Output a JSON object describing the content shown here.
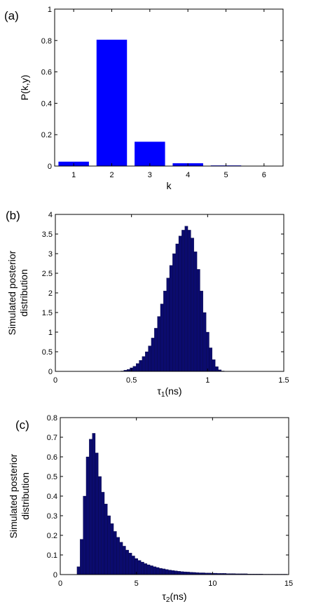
{
  "chart_data": [
    {
      "panel_label": "(a)",
      "type": "bar",
      "categories": [
        "1",
        "2",
        "3",
        "4",
        "5",
        "6"
      ],
      "values": [
        0.028,
        0.805,
        0.155,
        0.018,
        0.004,
        0.002
      ],
      "xlabel": "k",
      "ylabel": "P(k,y)",
      "ylim": [
        0,
        1
      ],
      "yticks": [
        0,
        0.2,
        0.4,
        0.6,
        0.8,
        1
      ],
      "bar_color": "#0000ff",
      "grid": false
    },
    {
      "panel_label": "(b)",
      "type": "bar",
      "xlabel_symbol": "τ",
      "xlabel_sub": "1",
      "xlabel_unit": "(ns)",
      "ylabel_lines": [
        "Simulated posterior",
        "distribution"
      ],
      "xlim": [
        0,
        1.5
      ],
      "ylim": [
        0,
        4
      ],
      "xticks": [
        0,
        0.5,
        1,
        1.5
      ],
      "yticks": [
        0,
        0.5,
        1,
        1.5,
        2,
        2.5,
        3,
        3.5,
        4
      ],
      "bar_color": "#0b0b6e",
      "grid": false,
      "x": [
        0.44,
        0.46,
        0.48,
        0.5,
        0.52,
        0.54,
        0.56,
        0.58,
        0.6,
        0.62,
        0.64,
        0.66,
        0.68,
        0.7,
        0.72,
        0.74,
        0.76,
        0.78,
        0.8,
        0.82,
        0.84,
        0.86,
        0.88,
        0.9,
        0.92,
        0.94,
        0.96,
        0.98,
        1.0,
        1.02,
        1.04,
        1.06,
        1.08,
        1.1
      ],
      "values": [
        0.01,
        0.03,
        0.05,
        0.09,
        0.13,
        0.2,
        0.28,
        0.38,
        0.5,
        0.65,
        0.85,
        1.1,
        1.4,
        1.72,
        2.05,
        2.38,
        2.7,
        3.0,
        3.25,
        3.45,
        3.6,
        3.7,
        3.6,
        3.4,
        3.05,
        2.6,
        2.05,
        1.5,
        1.0,
        0.6,
        0.3,
        0.12,
        0.04,
        0.01
      ]
    },
    {
      "panel_label": "(c)",
      "type": "bar",
      "xlabel_symbol": "τ",
      "xlabel_sub": "2",
      "xlabel_unit": "(ns)",
      "ylabel_lines": [
        "Simulated posterior",
        "distribution"
      ],
      "xlim": [
        0,
        15
      ],
      "ylim": [
        0,
        0.8
      ],
      "xticks": [
        0,
        5,
        10,
        15
      ],
      "yticks": [
        0,
        0.1,
        0.2,
        0.3,
        0.4,
        0.5,
        0.6,
        0.7,
        0.8
      ],
      "bar_color": "#0b0b6e",
      "grid": false,
      "x": [
        1.2,
        1.4,
        1.6,
        1.8,
        2.0,
        2.2,
        2.4,
        2.6,
        2.8,
        3.0,
        3.2,
        3.4,
        3.6,
        3.8,
        4.0,
        4.2,
        4.4,
        4.6,
        4.8,
        5.0,
        5.2,
        5.4,
        5.6,
        5.8,
        6.0,
        6.2,
        6.4,
        6.6,
        6.8,
        7.0,
        7.2,
        7.4,
        7.6,
        7.8,
        8.0,
        8.2,
        8.4,
        8.6,
        8.8,
        9.0,
        9.2,
        9.4,
        9.6,
        9.8,
        10.0,
        10.2,
        10.4,
        10.6,
        10.8,
        11.0,
        11.2,
        11.4,
        11.6,
        11.8,
        12.0,
        12.2,
        12.4,
        12.6,
        12.8,
        13.0,
        13.2,
        13.4,
        13.6,
        13.8,
        14.0,
        14.2,
        14.4,
        14.6,
        14.8
      ],
      "values": [
        0.04,
        0.18,
        0.4,
        0.6,
        0.69,
        0.72,
        0.62,
        0.5,
        0.42,
        0.36,
        0.3,
        0.26,
        0.22,
        0.19,
        0.165,
        0.145,
        0.125,
        0.11,
        0.095,
        0.082,
        0.072,
        0.064,
        0.056,
        0.05,
        0.045,
        0.04,
        0.036,
        0.032,
        0.029,
        0.026,
        0.023,
        0.021,
        0.019,
        0.017,
        0.015,
        0.014,
        0.013,
        0.012,
        0.011,
        0.01,
        0.009,
        0.009,
        0.008,
        0.008,
        0.007,
        0.007,
        0.006,
        0.006,
        0.006,
        0.005,
        0.005,
        0.005,
        0.004,
        0.004,
        0.004,
        0.004,
        0.003,
        0.003,
        0.003,
        0.003,
        0.003,
        0.002,
        0.002,
        0.002,
        0.002,
        0.002,
        0.002,
        0.002,
        0.002
      ]
    }
  ]
}
